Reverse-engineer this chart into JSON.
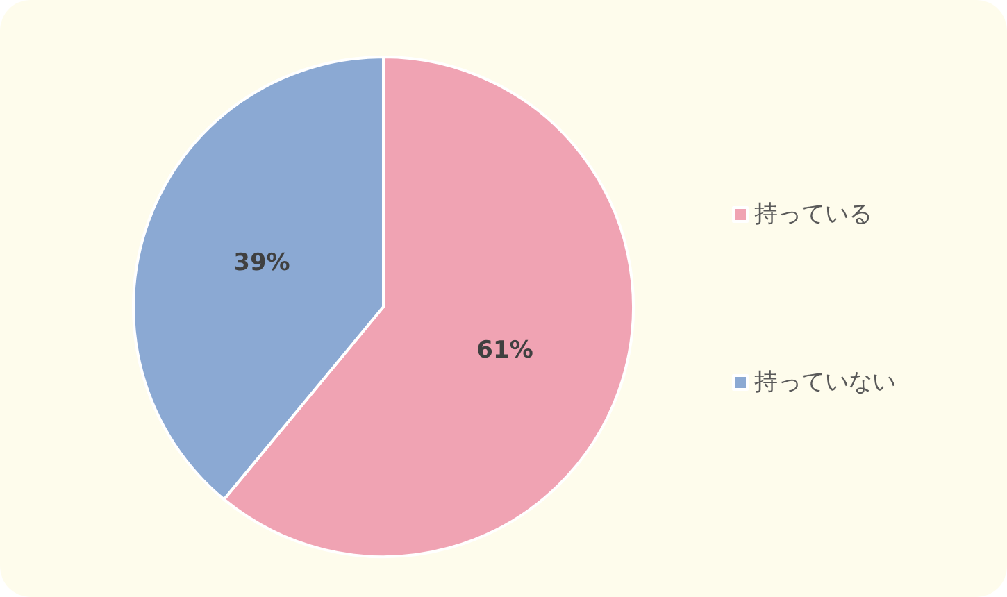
{
  "chart_data": {
    "type": "pie",
    "categories": [
      "持っている",
      "持っていない"
    ],
    "values": [
      61,
      39
    ],
    "colors": [
      "#f0a3b3",
      "#8ba9d3"
    ],
    "value_labels": [
      "61%",
      "39%"
    ],
    "legend": "right"
  }
}
